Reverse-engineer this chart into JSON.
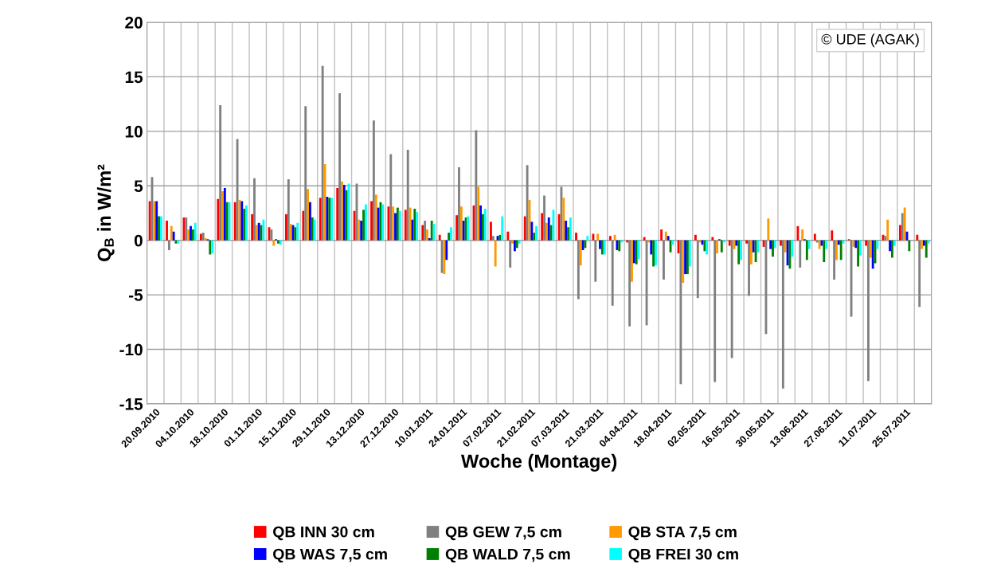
{
  "chart_data": {
    "type": "bar",
    "xlabel": "Woche (Montage)",
    "ylabel": "Q$_{B}$ in W/m²",
    "categories": [
      "20.09.2010",
      null,
      "04.10.2010",
      null,
      "18.10.2010",
      null,
      "01.11.2010",
      null,
      "15.11.2010",
      null,
      "29.11.2010",
      null,
      "13.12.2010",
      null,
      "27.12.2010",
      null,
      "10.01.2011",
      null,
      "24.01.2011",
      null,
      "07.02.2011",
      null,
      "21.02.2011",
      null,
      "07.03.2011",
      null,
      "21.03.2011",
      null,
      "04.04.2011",
      null,
      "18.04.2011",
      null,
      "02.05.2011",
      null,
      "16.05.2011",
      null,
      "30.05.2011",
      null,
      "13.06.2011",
      null,
      "27.06.2011",
      null,
      "11.07.2011",
      null,
      "25.07.2011",
      null
    ],
    "series": [
      {
        "name": "QB INN 30 cm",
        "color": "#ff0000",
        "values": [
          3.6,
          1.8,
          2.1,
          0.6,
          3.8,
          3.5,
          2.4,
          1.2,
          2.4,
          2.7,
          3.9,
          4.8,
          2.7,
          3.6,
          3.1,
          2.8,
          1.4,
          0.5,
          2.3,
          3.2,
          1.7,
          0.8,
          2.2,
          2.5,
          2.4,
          0.7,
          0.6,
          0.4,
          -0.2,
          0.3,
          1.0,
          -1.2,
          0.5,
          0.3,
          -0.5,
          -0.3,
          -0.6,
          -0.5,
          1.3,
          0.6,
          0.9,
          0.1,
          -0.5,
          0.5,
          1.4,
          0.5
        ]
      },
      {
        "name": "QB GEW 7,5 cm",
        "color": "#808080",
        "values": [
          5.8,
          -0.9,
          2.1,
          0.7,
          12.4,
          9.3,
          5.7,
          1.0,
          5.6,
          12.3,
          16.0,
          13.5,
          5.2,
          11.0,
          7.9,
          8.3,
          1.8,
          -3.0,
          6.7,
          10.1,
          0.4,
          -2.5,
          6.9,
          4.1,
          4.9,
          -5.4,
          -3.8,
          -6.0,
          -7.9,
          -7.8,
          -3.6,
          -13.2,
          -5.3,
          -13.0,
          -10.8,
          -5.1,
          -8.6,
          -13.6,
          -2.5,
          -0.2,
          -3.6,
          -7.0,
          -12.9,
          0.4,
          2.5,
          -6.1
        ]
      },
      {
        "name": "QB STA 7,5 cm",
        "color": "#ff9900",
        "values": [
          3.6,
          1.3,
          1.0,
          0.2,
          4.5,
          3.7,
          1.4,
          -0.5,
          1.5,
          4.7,
          7.0,
          5.4,
          1.9,
          4.2,
          3.1,
          3.0,
          1.0,
          -3.1,
          3.1,
          4.9,
          -2.4,
          -0.3,
          3.7,
          1.6,
          3.9,
          -2.3,
          0.6,
          0.5,
          -3.8,
          -0.2,
          0.8,
          -3.9,
          -0.2,
          -1.2,
          -0.8,
          -2.2,
          2.0,
          -1.1,
          1.0,
          -0.8,
          -1.8,
          -0.6,
          -1.6,
          1.9,
          3.0,
          -0.8
        ]
      },
      {
        "name": "QB WAS 7,5 cm",
        "color": "#0000ff",
        "values": [
          3.6,
          0.8,
          1.3,
          0.1,
          4.8,
          3.6,
          1.6,
          0.1,
          1.4,
          3.5,
          4.0,
          5.1,
          1.8,
          3.0,
          2.5,
          1.9,
          0.2,
          -1.8,
          1.8,
          3.2,
          0.4,
          -1.0,
          1.7,
          2.1,
          1.8,
          -0.9,
          -0.8,
          -0.9,
          -2.1,
          -1.3,
          0.4,
          -3.1,
          -0.4,
          0.1,
          -0.5,
          -1.1,
          -0.8,
          -2.3,
          0.1,
          -0.5,
          -0.4,
          -0.7,
          -2.6,
          -1.0,
          0.8,
          -0.5
        ]
      },
      {
        "name": "QB WALD 7,5 cm",
        "color": "#008000",
        "values": [
          2.2,
          -0.3,
          1.0,
          -1.3,
          3.5,
          2.9,
          1.4,
          -0.3,
          1.2,
          2.1,
          3.9,
          4.6,
          2.8,
          3.5,
          3.0,
          2.9,
          1.8,
          0.7,
          2.1,
          2.4,
          0.5,
          -0.7,
          0.7,
          1.4,
          1.2,
          -0.7,
          -1.3,
          -1.0,
          -2.2,
          -2.4,
          -1.1,
          -3.1,
          -1.0,
          -1.1,
          -2.2,
          -2.0,
          -1.5,
          -2.6,
          -1.8,
          -2.0,
          -1.8,
          -2.4,
          -2.1,
          -1.6,
          -1.0,
          -1.6
        ]
      },
      {
        "name": "QB FREI 30 cm",
        "color": "#00ffff",
        "values": [
          2.2,
          -0.3,
          1.6,
          -1.2,
          3.5,
          3.2,
          1.9,
          -0.4,
          1.6,
          1.9,
          3.9,
          5.2,
          3.3,
          3.3,
          2.7,
          2.6,
          1.5,
          1.2,
          2.2,
          2.9,
          2.2,
          -0.3,
          1.3,
          2.8,
          2.1,
          0.4,
          -1.3,
          -0.2,
          -1.7,
          -2.3,
          -0.4,
          -2.4,
          -1.3,
          -0.2,
          -1.8,
          -1.1,
          -0.7,
          -1.5,
          -0.8,
          -0.8,
          -0.3,
          -1.4,
          -0.8,
          -0.5,
          0.0,
          -0.3
        ]
      }
    ],
    "ylim": [
      -15,
      20
    ],
    "yticks": [
      -15,
      -10,
      -5,
      0,
      5,
      10,
      15,
      20
    ],
    "grid": true,
    "legend": "bottom",
    "annotations": [
      "© UDE (AGAK)"
    ]
  }
}
